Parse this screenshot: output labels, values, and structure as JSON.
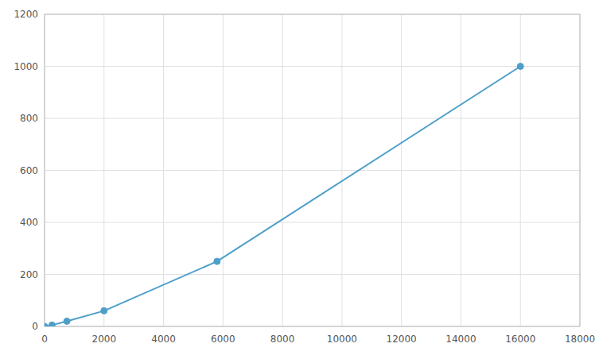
{
  "chart_data": {
    "type": "line",
    "x": [
      0,
      250,
      750,
      2000,
      5800,
      16000
    ],
    "values": [
      0,
      5,
      20,
      60,
      250,
      1000
    ],
    "color": "#4d9fca",
    "marker": "circle",
    "xlim": [
      0,
      18000
    ],
    "ylim": [
      0,
      1200
    ],
    "xticks": [
      0,
      2000,
      4000,
      6000,
      8000,
      10000,
      12000,
      14000,
      16000,
      18000
    ],
    "yticks": [
      0,
      200,
      400,
      600,
      800,
      1000,
      1200
    ],
    "grid": true
  }
}
